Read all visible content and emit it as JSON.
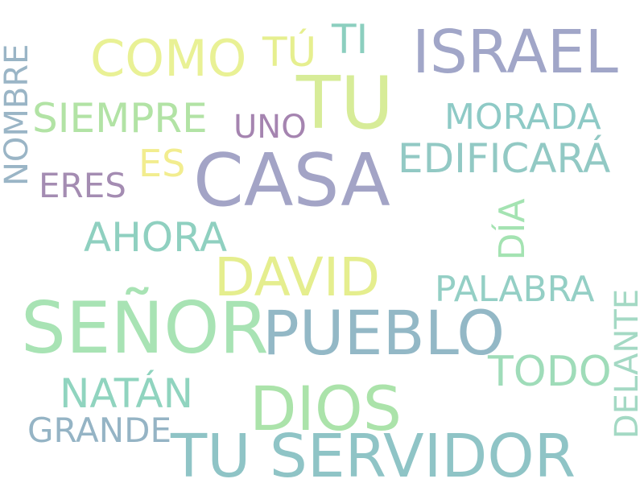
{
  "words": {
    "tu_servidor": {
      "text": "TU SERVIDOR",
      "color": "#8fc4c6"
    },
    "senor": {
      "text": "SEÑOR",
      "color": "#a8e3b4"
    },
    "casa": {
      "text": "CASA",
      "color": "#a3a4c6"
    },
    "israel": {
      "text": "ISRAEL",
      "color": "#a1a6c8"
    },
    "tu": {
      "text": "TU",
      "color": "#d7ec98"
    },
    "pueblo": {
      "text": "PUEBLO",
      "color": "#93b8c6"
    },
    "dios": {
      "text": "DIOS",
      "color": "#abe3aa"
    },
    "david": {
      "text": "DAVID",
      "color": "#e5ee8e"
    },
    "como": {
      "text": "COMO",
      "color": "#e9f195"
    },
    "siempre": {
      "text": "SIEMPRE",
      "color": "#b2e3a5"
    },
    "edificara": {
      "text": "EDIFICARÁ",
      "color": "#92c9c4"
    },
    "todo": {
      "text": "TODO",
      "color": "#9fdcb9"
    },
    "ahora": {
      "text": "AHORA",
      "color": "#8fd0c0"
    },
    "natan": {
      "text": "NATÁN",
      "color": "#90d4bf"
    },
    "palabra": {
      "text": "PALABRA",
      "color": "#94cfc5"
    },
    "morada": {
      "text": "MORADA",
      "color": "#8ecac6"
    },
    "tu_accent": {
      "text": "TÚ",
      "color": "#e6ef8f"
    },
    "ti": {
      "text": "TI",
      "color": "#8ccfbf"
    },
    "grande": {
      "text": "GRANDE",
      "color": "#95b4c5"
    },
    "eres": {
      "text": "ERES",
      "color": "#a48cb2"
    },
    "uno": {
      "text": "UNO",
      "color": "#a584b0"
    },
    "es": {
      "text": "ES",
      "color": "#f2ed8f"
    },
    "nombre": {
      "text": "NOMBRE",
      "color": "#9ab5c6"
    },
    "dia": {
      "text": "DÍA",
      "color": "#a4e3b2"
    },
    "delante": {
      "text": "DELANTE",
      "color": "#a4d9c4"
    }
  }
}
